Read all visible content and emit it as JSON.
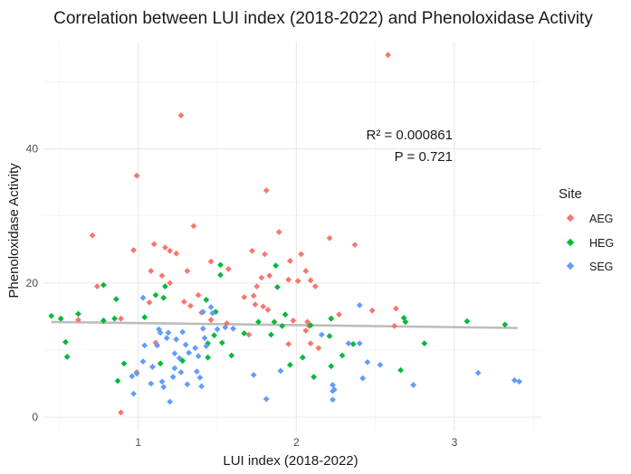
{
  "chart_data": {
    "type": "scatter",
    "title": "Correlation between LUI index (2018-2022) and Phenoloxidase Activity",
    "xlabel": "LUI index (2018-2022)",
    "ylabel": "Phenoloxidase Activity",
    "xlim": [
      0.4,
      3.55
    ],
    "ylim": [
      -2,
      56
    ],
    "x_ticks": [
      1,
      2,
      3
    ],
    "y_ticks": [
      0,
      20,
      40
    ],
    "x_tick_labels": [
      "1",
      "2",
      "3"
    ],
    "y_tick_labels": [
      "0",
      "20",
      "40"
    ],
    "grid": true,
    "legend": {
      "title": "Site",
      "position": "right"
    },
    "annotations": [
      "R² = 0.000861",
      "P = 0.721"
    ],
    "trend_line": {
      "x": [
        0.45,
        3.4
      ],
      "y": [
        14.2,
        13.3
      ],
      "color": "#bdbdbd"
    },
    "series": [
      {
        "name": "AEG",
        "color": "#f8766d",
        "points": [
          [
            2.58,
            54
          ],
          [
            1.27,
            45
          ],
          [
            0.99,
            36
          ],
          [
            1.81,
            33.8
          ],
          [
            1.35,
            28.5
          ],
          [
            0.71,
            27.1
          ],
          [
            1.89,
            27.6
          ],
          [
            2.21,
            26.7
          ],
          [
            2.37,
            25.7
          ],
          [
            0.97,
            24.9
          ],
          [
            1.1,
            25.8
          ],
          [
            1.17,
            25.3
          ],
          [
            1.2,
            24.8
          ],
          [
            1.24,
            24.4
          ],
          [
            1.72,
            24.8
          ],
          [
            1.8,
            24.3
          ],
          [
            2.03,
            24.3
          ],
          [
            1.96,
            23.3
          ],
          [
            1.46,
            23.2
          ],
          [
            1.57,
            22.1
          ],
          [
            1.08,
            21.8
          ],
          [
            1.31,
            21.8
          ],
          [
            1.83,
            21.1
          ],
          [
            1.15,
            21.1
          ],
          [
            1.78,
            20.8
          ],
          [
            2.06,
            21.8
          ],
          [
            1.95,
            20.5
          ],
          [
            2.09,
            20.4
          ],
          [
            2.01,
            20.3
          ],
          [
            1.2,
            20.0
          ],
          [
            1.75,
            19.5
          ],
          [
            2.12,
            19.5
          ],
          [
            0.74,
            19.5
          ],
          [
            1.38,
            18.2
          ],
          [
            1.73,
            18.1
          ],
          [
            1.67,
            17.9
          ],
          [
            1.29,
            17.2
          ],
          [
            1.07,
            17.1
          ],
          [
            1.33,
            16.6
          ],
          [
            1.74,
            16.8
          ],
          [
            1.79,
            16.5
          ],
          [
            1.4,
            15.6
          ],
          [
            1.82,
            16.0
          ],
          [
            2.27,
            15.3
          ],
          [
            2.48,
            15.9
          ],
          [
            1.46,
            14.5
          ],
          [
            2.63,
            16.2
          ],
          [
            0.62,
            14.5
          ],
          [
            0.89,
            14.7
          ],
          [
            1.98,
            14.4
          ],
          [
            2.07,
            14.2
          ],
          [
            2.22,
            14.7
          ],
          [
            2.08,
            13.6
          ],
          [
            2.62,
            13.6
          ],
          [
            1.56,
            14.0
          ],
          [
            2.06,
            12.9
          ],
          [
            1.7,
            12.3
          ],
          [
            2.09,
            11.0
          ],
          [
            1.11,
            11.1
          ],
          [
            1.95,
            10.9
          ],
          [
            2.14,
            10.3
          ],
          [
            0.99,
            6.7
          ],
          [
            0.89,
            0.7
          ]
        ]
      },
      {
        "name": "HEG",
        "color": "#00ba38",
        "points": [
          [
            0.45,
            15.1
          ],
          [
            0.51,
            14.7
          ],
          [
            0.62,
            15.4
          ],
          [
            0.78,
            19.7
          ],
          [
            0.86,
            17.6
          ],
          [
            0.85,
            14.7
          ],
          [
            0.54,
            11.2
          ],
          [
            0.55,
            9.0
          ],
          [
            0.78,
            14.4
          ],
          [
            0.87,
            5.4
          ],
          [
            0.91,
            8.0
          ],
          [
            1.04,
            14.9
          ],
          [
            1.11,
            18.2
          ],
          [
            1.16,
            17.8
          ],
          [
            1.17,
            19.5
          ],
          [
            1.43,
            17.5
          ],
          [
            1.52,
            22.7
          ],
          [
            1.52,
            21.2
          ],
          [
            1.49,
            15.7
          ],
          [
            1.48,
            12.2
          ],
          [
            1.44,
            11.0
          ],
          [
            1.53,
            11.1
          ],
          [
            1.44,
            8.9
          ],
          [
            1.59,
            9.2
          ],
          [
            1.76,
            14.2
          ],
          [
            1.84,
            12.3
          ],
          [
            1.87,
            22.6
          ],
          [
            1.88,
            19.4
          ],
          [
            1.86,
            14.2
          ],
          [
            1.93,
            15.3
          ],
          [
            1.91,
            13.6
          ],
          [
            1.96,
            7.8
          ],
          [
            2.04,
            8.9
          ],
          [
            2.09,
            13.7
          ],
          [
            2.11,
            6.0
          ],
          [
            2.22,
            14.7
          ],
          [
            2.21,
            12.1
          ],
          [
            2.22,
            7.6
          ],
          [
            2.29,
            9.2
          ],
          [
            2.36,
            10.9
          ],
          [
            2.68,
            14.8
          ],
          [
            2.66,
            7.0
          ],
          [
            2.69,
            14.2
          ],
          [
            2.81,
            11.0
          ],
          [
            3.08,
            14.3
          ],
          [
            3.32,
            13.8
          ],
          [
            1.67,
            12.5
          ],
          [
            1.28,
            8.4
          ],
          [
            1.14,
            8.0
          ]
        ]
      },
      {
        "name": "SEG",
        "color": "#619cff",
        "points": [
          [
            0.96,
            6.1
          ],
          [
            0.97,
            3.5
          ],
          [
            0.99,
            6.5
          ],
          [
            1.03,
            17.8
          ],
          [
            1.04,
            10.7
          ],
          [
            1.03,
            8.3
          ],
          [
            1.08,
            5.0
          ],
          [
            1.09,
            7.5
          ],
          [
            1.12,
            10.7
          ],
          [
            1.13,
            13.1
          ],
          [
            1.14,
            12.6
          ],
          [
            1.15,
            5.3
          ],
          [
            1.16,
            4.5
          ],
          [
            1.18,
            11.8
          ],
          [
            1.19,
            12.6
          ],
          [
            1.2,
            2.3
          ],
          [
            1.22,
            6.0
          ],
          [
            1.23,
            7.3
          ],
          [
            1.23,
            9.5
          ],
          [
            1.24,
            11.6
          ],
          [
            1.26,
            8.8
          ],
          [
            1.27,
            6.7
          ],
          [
            1.28,
            12.7
          ],
          [
            1.3,
            10.8
          ],
          [
            1.31,
            4.9
          ],
          [
            1.32,
            9.6
          ],
          [
            1.36,
            10.3
          ],
          [
            1.37,
            6.8
          ],
          [
            1.38,
            9.1
          ],
          [
            1.39,
            5.9
          ],
          [
            1.4,
            4.6
          ],
          [
            1.41,
            13.2
          ],
          [
            1.41,
            15.7
          ],
          [
            1.42,
            11.8
          ],
          [
            1.43,
            10.6
          ],
          [
            1.46,
            16.4
          ],
          [
            1.47,
            15.5
          ],
          [
            1.5,
            13.1
          ],
          [
            1.55,
            13.4
          ],
          [
            1.6,
            13.2
          ],
          [
            1.73,
            6.3
          ],
          [
            1.81,
            2.7
          ],
          [
            1.9,
            6.9
          ],
          [
            2.16,
            12.3
          ],
          [
            2.23,
            3.9
          ],
          [
            2.23,
            2.6
          ],
          [
            2.23,
            4.8
          ],
          [
            2.24,
            4.1
          ],
          [
            2.33,
            11.0
          ],
          [
            2.4,
            11.0
          ],
          [
            2.4,
            16.7
          ],
          [
            2.42,
            5.8
          ],
          [
            2.45,
            8.2
          ],
          [
            2.53,
            7.8
          ],
          [
            2.74,
            4.8
          ],
          [
            3.15,
            6.6
          ],
          [
            3.38,
            5.5
          ],
          [
            3.41,
            5.3
          ]
        ]
      }
    ]
  }
}
